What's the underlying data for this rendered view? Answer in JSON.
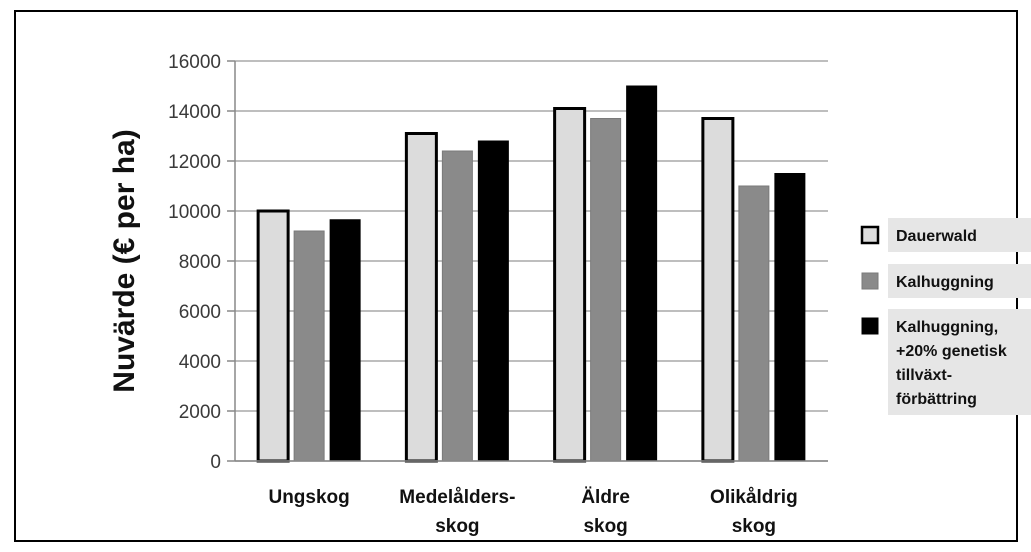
{
  "chart_data": {
    "type": "bar",
    "title": "",
    "ylabel": "Nuvärde (€ per ha)",
    "xlabel": "",
    "ylim": [
      0,
      16000
    ],
    "yticks": [
      "0",
      "2000",
      "4000",
      "6000",
      "8000",
      "10000",
      "12000",
      "14000",
      "16000"
    ],
    "categories": [
      [
        "Ungskog"
      ],
      [
        "Medelålders-",
        "skog"
      ],
      [
        "Äldre",
        "skog"
      ],
      [
        "Olikåldrig",
        "skog"
      ]
    ],
    "series": [
      {
        "name": "Dauerwald",
        "values": [
          10000,
          13100,
          14100,
          13700
        ],
        "color": "#dcdcdc"
      },
      {
        "name": "Kalhuggning",
        "values": [
          9200,
          12400,
          13700,
          11000
        ],
        "color": "#8a8a8a"
      },
      {
        "name": "Kalhuggning, +20% genetisk tillväxt- förbättring",
        "legend_lines": [
          "Kalhuggning,",
          "+20% genetisk",
          "tillväxt-",
          "förbättring"
        ],
        "values": [
          9650,
          12800,
          15000,
          11500
        ],
        "color": "#000000"
      }
    ],
    "grid": true,
    "legend_position": "right"
  }
}
